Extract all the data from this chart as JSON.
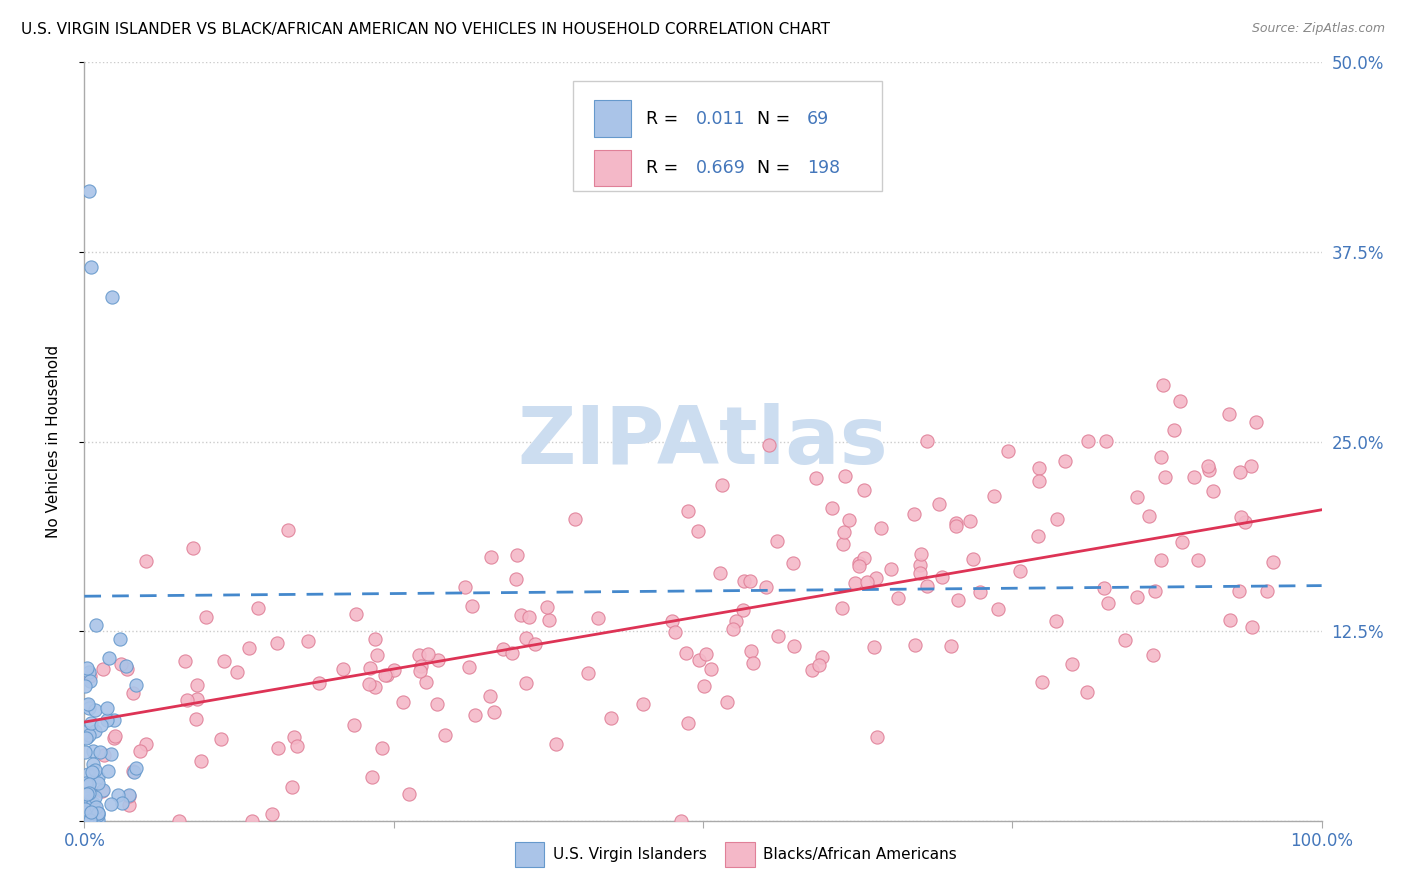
{
  "title": "U.S. VIRGIN ISLANDER VS BLACK/AFRICAN AMERICAN NO VEHICLES IN HOUSEHOLD CORRELATION CHART",
  "source": "Source: ZipAtlas.com",
  "ylabel": "No Vehicles in Household",
  "xlim": [
    0.0,
    1.0
  ],
  "ylim": [
    0.0,
    0.5
  ],
  "yticks": [
    0.0,
    0.125,
    0.25,
    0.375,
    0.5
  ],
  "ytick_labels": [
    "",
    "12.5%",
    "25.0%",
    "37.5%",
    "50.0%"
  ],
  "xtick_labels": [
    "0.0%",
    "100.0%"
  ],
  "legend1_R": "0.011",
  "legend1_N": "69",
  "legend2_R": "0.669",
  "legend2_N": "198",
  "series1_color": "#aac4e8",
  "series1_edge": "#6699cc",
  "series2_color": "#f4b8c8",
  "series2_edge": "#e08098",
  "line1_color": "#4488cc",
  "line2_color": "#dd3355",
  "watermark": "ZIPAtlas",
  "watermark_color": "#ccddf0",
  "background_color": "#ffffff",
  "title_fontsize": 11,
  "tick_label_color_right": "#4477bb",
  "tick_label_color_x": "#4477bb",
  "seed": 42,
  "n1": 69,
  "n2": 198,
  "line1_start_y": 0.148,
  "line1_end_y": 0.155,
  "line2_start_y": 0.065,
  "line2_end_y": 0.205
}
